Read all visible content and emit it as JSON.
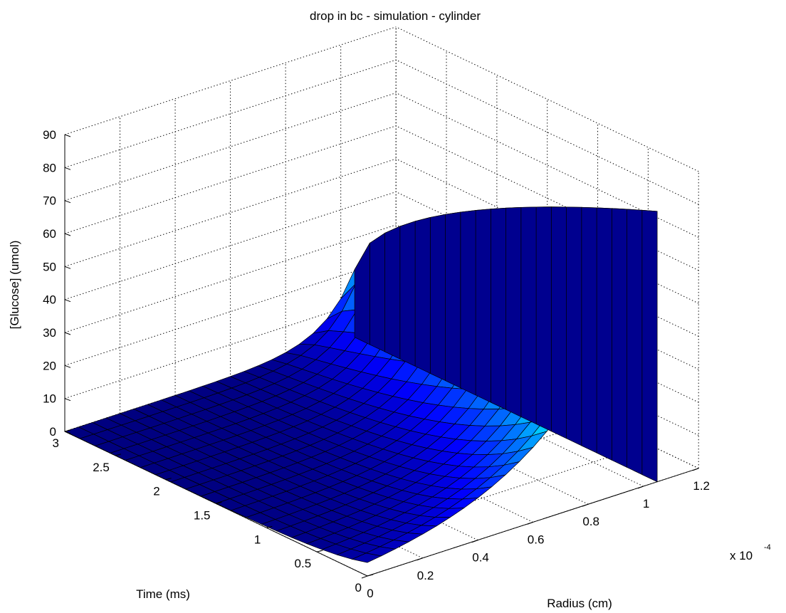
{
  "chart_data": {
    "type": "surface",
    "title": "drop in bc - simulation - cylinder",
    "xlabel": "Radius (cm)",
    "ylabel": "Time (ms)",
    "zlabel": "[Glucose] (umol)",
    "x_multiplier": "x 10",
    "x_exponent": "-4",
    "xlim": [
      0,
      1.2
    ],
    "ylim": [
      0,
      3
    ],
    "zlim": [
      0,
      90
    ],
    "x_ticks": [
      "0",
      "0.2",
      "0.4",
      "0.6",
      "0.8",
      "1",
      "1.2"
    ],
    "y_ticks": [
      "0",
      "0.5",
      "1",
      "1.5",
      "2",
      "2.5",
      "3"
    ],
    "z_ticks": [
      "0",
      "10",
      "20",
      "30",
      "40",
      "50",
      "60",
      "70",
      "80",
      "90"
    ],
    "grid": true,
    "colormap": "jet",
    "surface_grid": {
      "radius_cells": 21,
      "time_cells": 20,
      "radius_max": 1.05,
      "time_max": 3,
      "peak_value": 82
    }
  }
}
